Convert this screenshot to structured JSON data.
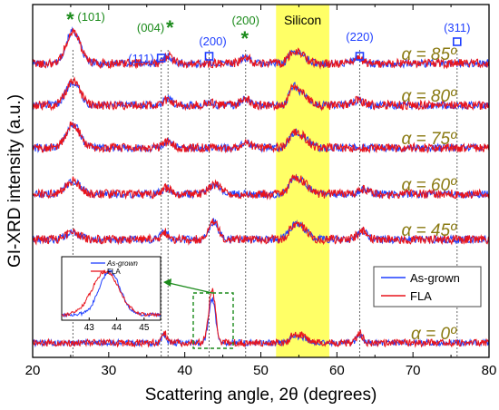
{
  "chart_data": {
    "type": "line",
    "xlabel": "Scattering angle, 2θ (degrees)",
    "ylabel": "GI-XRD intensity (a.u.)",
    "xlim": [
      20,
      80
    ],
    "xticks": [
      20,
      30,
      40,
      50,
      60,
      70,
      80
    ],
    "grid": false,
    "legend": {
      "position": "lower-right",
      "entries": [
        "As-grown",
        "FLA"
      ]
    },
    "colors": {
      "as_grown": "#1f3fff",
      "fla": "#e8141c",
      "silicon_band": "#ffff66",
      "anatase_label": "#1a8a1a",
      "rutile_label": "#1f3fff",
      "alpha_label": "#8a7a12"
    },
    "silicon_band": {
      "label": "Silicon",
      "x_range": [
        52,
        59
      ]
    },
    "reference_lines": [
      25.3,
      36.9,
      37.8,
      43.2,
      48.0,
      63.0,
      75.8
    ],
    "peak_labels": [
      {
        "text": "(101)",
        "phase": "anatase",
        "x": 25.3
      },
      {
        "text": "(004)",
        "phase": "anatase",
        "x": 37.8
      },
      {
        "text": "(111)",
        "phase": "rutile",
        "x": 36.9
      },
      {
        "text": "(200)",
        "phase": "rutile",
        "x": 43.2
      },
      {
        "text": "(200)",
        "phase": "anatase",
        "x": 48.0
      },
      {
        "text": "(220)",
        "phase": "rutile",
        "x": 63.0
      },
      {
        "text": "(311)",
        "phase": "rutile",
        "x": 75.8
      }
    ],
    "series": [
      {
        "alpha": "α = 85º",
        "peaks": [
          [
            25.3,
            5.5,
            0.9
          ],
          [
            37.8,
            1.2,
            0.6
          ],
          [
            48.0,
            1.0,
            0.6
          ],
          [
            54.2,
            1.5,
            0.6
          ],
          [
            55.3,
            1.3,
            0.8
          ],
          [
            62.8,
            0.8,
            0.7
          ]
        ]
      },
      {
        "alpha": "α = 80º",
        "peaks": [
          [
            25.3,
            4.0,
            0.9
          ],
          [
            37.8,
            1.0,
            0.6
          ],
          [
            43.2,
            0.6,
            0.4
          ],
          [
            48.0,
            1.0,
            0.6
          ],
          [
            54.2,
            2.2,
            0.5
          ],
          [
            55.3,
            2.0,
            0.9
          ],
          [
            62.8,
            0.8,
            0.7
          ]
        ]
      },
      {
        "alpha": "α = 75º",
        "peaks": [
          [
            25.3,
            4.0,
            0.9
          ],
          [
            37.8,
            1.0,
            0.6
          ],
          [
            48.0,
            1.0,
            0.6
          ],
          [
            54.2,
            1.5,
            0.6
          ],
          [
            55.3,
            2.0,
            0.9
          ]
        ]
      },
      {
        "alpha": "α = 60º",
        "peaks": [
          [
            25.3,
            2.3,
            0.9
          ],
          [
            37.6,
            1.0,
            0.6
          ],
          [
            44.0,
            1.6,
            0.8
          ],
          [
            54.2,
            1.5,
            0.6
          ],
          [
            55.3,
            2.2,
            0.9
          ],
          [
            63.5,
            0.8,
            0.7
          ]
        ]
      },
      {
        "alpha": "α = 45º",
        "peaks": [
          [
            25.3,
            1.2,
            0.9
          ],
          [
            37.4,
            1.2,
            0.5
          ],
          [
            43.8,
            3.0,
            0.6
          ],
          [
            54.2,
            1.5,
            0.6
          ],
          [
            55.3,
            2.0,
            0.9
          ],
          [
            63.3,
            1.5,
            0.6
          ]
        ]
      },
      {
        "alpha": "α = 0º",
        "peaks": [
          [
            37.3,
            2.0,
            0.35
          ],
          [
            43.6,
            11.0,
            0.45
          ],
          [
            54.2,
            1.2,
            0.4
          ],
          [
            55.3,
            1.6,
            0.7
          ],
          [
            63.0,
            2.0,
            0.4
          ]
        ]
      }
    ],
    "inset": {
      "xlim": [
        42.0,
        45.6
      ],
      "xticks": [
        43,
        44,
        45
      ],
      "legend_entries": [
        "As-grown",
        "FLA"
      ],
      "as_grown_peak": [
        43.75,
        0.38
      ],
      "fla_peak": [
        43.6,
        0.48
      ]
    }
  }
}
